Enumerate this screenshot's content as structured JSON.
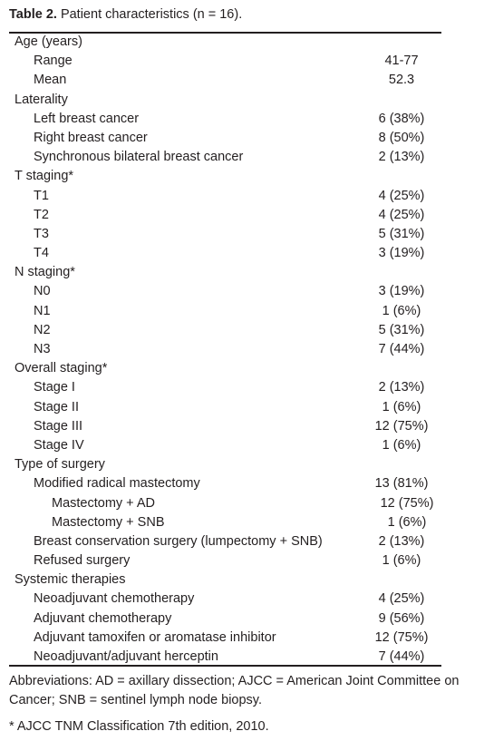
{
  "caption": {
    "label": "Table 2.",
    "text": " Patient characteristics (n = 16)."
  },
  "rows": [
    {
      "label": "Age (years)",
      "value": "",
      "level": 0
    },
    {
      "label": "Range",
      "value": "41-77",
      "level": 1
    },
    {
      "label": "Mean",
      "value": "52.3",
      "level": 1
    },
    {
      "label": "Laterality",
      "value": "",
      "level": 0
    },
    {
      "label": "Left breast cancer",
      "value": "6 (38%)",
      "level": 1
    },
    {
      "label": "Right breast cancer",
      "value": "8 (50%)",
      "level": 1
    },
    {
      "label": "Synchronous bilateral breast cancer",
      "value": "2 (13%)",
      "level": 1
    },
    {
      "label": "T staging*",
      "value": "",
      "level": 0
    },
    {
      "label": "T1",
      "value": "4 (25%)",
      "level": 1
    },
    {
      "label": "T2",
      "value": "4 (25%)",
      "level": 1
    },
    {
      "label": "T3",
      "value": "5 (31%)",
      "level": 1
    },
    {
      "label": "T4",
      "value": "3 (19%)",
      "level": 1
    },
    {
      "label": "N staging*",
      "value": "",
      "level": 0
    },
    {
      "label": "N0",
      "value": "3 (19%)",
      "level": 1
    },
    {
      "label": "N1",
      "value": "1 (6%)",
      "level": 1
    },
    {
      "label": "N2",
      "value": "5 (31%)",
      "level": 1
    },
    {
      "label": "N3",
      "value": "7 (44%)",
      "level": 1
    },
    {
      "label": "Overall staging*",
      "value": "",
      "level": 0
    },
    {
      "label": "Stage I",
      "value": "2 (13%)",
      "level": 1
    },
    {
      "label": "Stage II",
      "value": "1 (6%)",
      "level": 1
    },
    {
      "label": "Stage III",
      "value": "12 (75%)",
      "level": 1
    },
    {
      "label": "Stage IV",
      "value": "1 (6%)",
      "level": 1
    },
    {
      "label": "Type of surgery",
      "value": "",
      "level": 0
    },
    {
      "label": "Modified radical mastectomy",
      "value": "13 (81%)",
      "level": 1
    },
    {
      "label": "Mastectomy + AD",
      "value": "12 (75%)",
      "level": 2
    },
    {
      "label": "Mastectomy + SNB",
      "value": "1 (6%)",
      "level": 2
    },
    {
      "label": "Breast conservation surgery (lumpectomy + SNB)",
      "value": "2 (13%)",
      "level": 1
    },
    {
      "label": "Refused surgery",
      "value": "1 (6%)",
      "level": 1
    },
    {
      "label": "Systemic therapies",
      "value": "",
      "level": 0
    },
    {
      "label": "Neoadjuvant chemotherapy",
      "value": "4 (25%)",
      "level": 1
    },
    {
      "label": "Adjuvant chemotherapy",
      "value": "9 (56%)",
      "level": 1
    },
    {
      "label": "Adjuvant tamoxifen or aromatase inhibitor",
      "value": "12 (75%)",
      "level": 1
    },
    {
      "label": "Neoadjuvant/adjuvant herceptin",
      "value": "7 (44%)",
      "level": 1
    }
  ],
  "footnotes": {
    "abbreviations": "Abbreviations: AD = axillary dissection; AJCC = American Joint Committee on Cancer; SNB = sentinel lymph node biopsy.",
    "note": "* AJCC TNM Classification 7th edition, 2010."
  }
}
